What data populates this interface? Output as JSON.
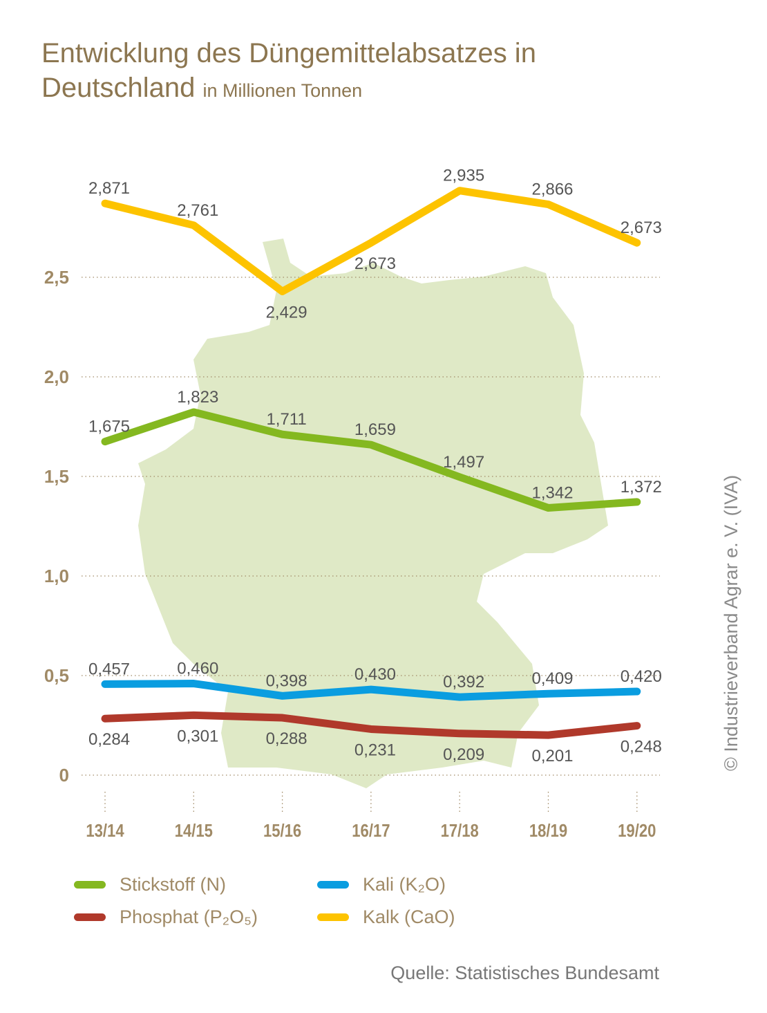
{
  "title": "Entwicklung des Düngemittelabsatzes in Deutschland",
  "subtitle": "in Millionen Tonnen",
  "source": "Quelle: Statistisches Bundesamt",
  "copyright": "© Industrieverband Agrar e. V. (IVA)",
  "chart_data": {
    "type": "line",
    "title": "Entwicklung des Düngemittelabsatzes in Deutschland",
    "ylabel": "Millionen Tonnen",
    "xlabel": "",
    "categories": [
      "13/14",
      "14/15",
      "15/16",
      "16/17",
      "17/18",
      "18/19",
      "19/20"
    ],
    "ylim": [
      0,
      3
    ],
    "yticks": [
      0,
      0.5,
      1.0,
      1.5,
      2.0,
      2.5
    ],
    "ytick_labels": [
      "0",
      "0,5",
      "1,0",
      "1,5",
      "2,0",
      "2,5"
    ],
    "grid": "horizontal dotted",
    "legend_position": "bottom",
    "series": [
      {
        "name": "Stickstoff (N)",
        "color": "#84b820",
        "values": [
          1.675,
          1.823,
          1.711,
          1.659,
          1.497,
          1.342,
          1.372
        ],
        "labels": [
          "1,675",
          "1,823",
          "1,711",
          "1,659",
          "1,497",
          "1,342",
          "1,372"
        ]
      },
      {
        "name": "Kali (K₂O)",
        "color": "#0a9de0",
        "values": [
          0.457,
          0.46,
          0.398,
          0.43,
          0.392,
          0.409,
          0.42
        ],
        "labels": [
          "0,457",
          "0,460",
          "0,398",
          "0,430",
          "0,392",
          "0,409",
          "0,420"
        ]
      },
      {
        "name": "Phosphat (P₂O₅)",
        "color": "#b0392b",
        "values": [
          0.284,
          0.301,
          0.288,
          0.231,
          0.209,
          0.201,
          0.248
        ],
        "labels": [
          "0,284",
          "0,301",
          "0,288",
          "0,231",
          "0,209",
          "0,201",
          "0,248"
        ]
      },
      {
        "name": "Kalk (CaO)",
        "color": "#fdc300",
        "values": [
          2.871,
          2.761,
          2.429,
          2.673,
          2.935,
          2.866,
          2.673
        ],
        "labels": [
          "2,871",
          "2,761",
          "2,429",
          "2,673",
          "2,935",
          "2,866",
          "2,673"
        ]
      }
    ]
  }
}
